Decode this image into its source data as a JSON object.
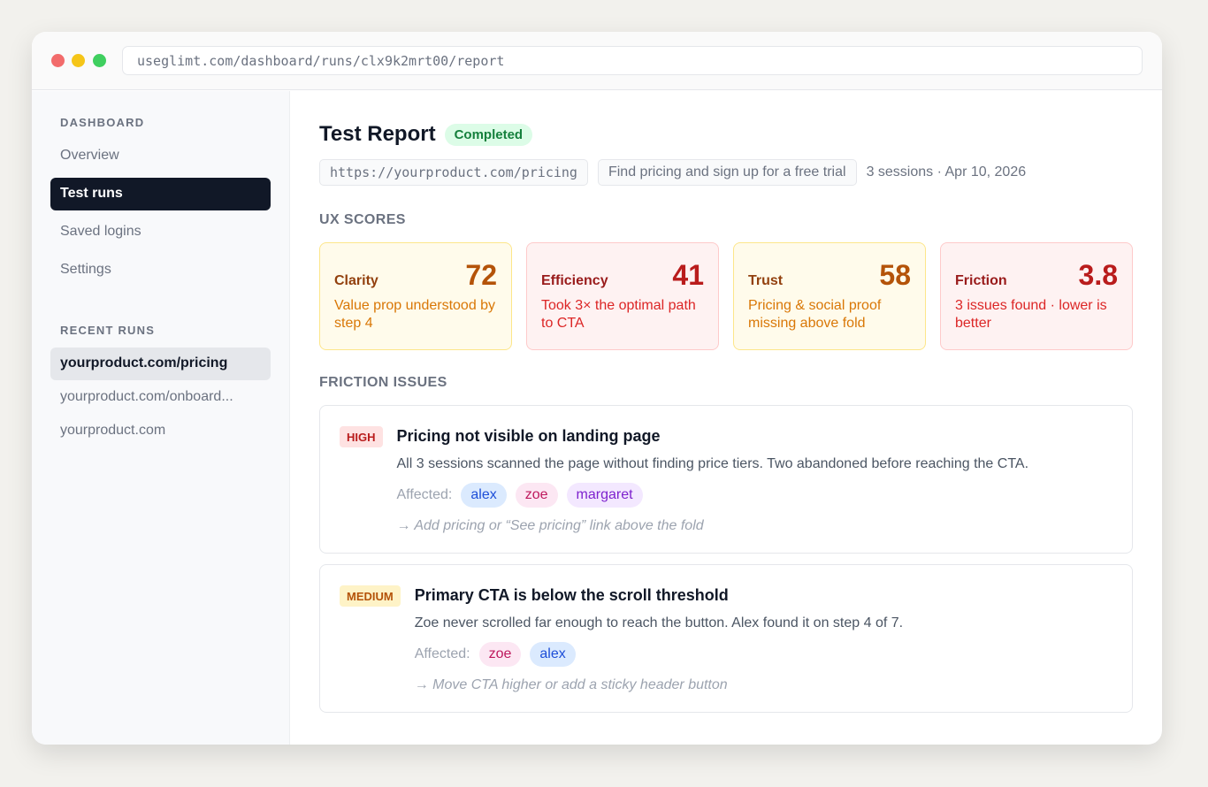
{
  "browser": {
    "url": "useglimt.com/dashboard/runs/clx9k2mrt00/report"
  },
  "sidebar": {
    "section_title": "DASHBOARD",
    "nav": [
      "Overview",
      "Test runs",
      "Saved logins",
      "Settings"
    ],
    "recent_title": "RECENT RUNS",
    "recent": [
      "yourproduct.com/pricing",
      "yourproduct.com/onboard...",
      "yourproduct.com"
    ]
  },
  "report": {
    "title": "Test Report",
    "status": "Completed",
    "url": "https://yourproduct.com/pricing",
    "task": "Find pricing and sign up for a free trial",
    "meta": "3 sessions · Apr 10, 2026",
    "scores_title": "UX SCORES",
    "scores": [
      {
        "label": "Clarity",
        "value": 72,
        "note": "Value prop understood by step 4"
      },
      {
        "label": "Efficiency",
        "value": 41,
        "note": "Took 3× the optimal path to CTA"
      },
      {
        "label": "Trust",
        "value": 58,
        "note": "Pricing & social proof missing above fold"
      },
      {
        "label": "Friction",
        "value": 3.8,
        "note": "3 issues found · lower is better"
      }
    ],
    "issues_title": "FRICTION ISSUES",
    "issues": [
      {
        "severity": "HIGH",
        "title": "Pricing not visible on landing page",
        "description": "All 3 sessions scanned the page without finding price tiers. Two abandoned before reaching the CTA.",
        "affected_label": "Affected:",
        "users": [
          "alex",
          "zoe",
          "margaret"
        ],
        "fix": "→ Add pricing or “See pricing” link above the fold"
      },
      {
        "severity": "MEDIUM",
        "title": "Primary CTA is below the scroll threshold",
        "description": "Zoe never scrolled far enough to reach the button. Alex found it on step 4 of 7.",
        "affected_label": "Affected:",
        "users": [
          "zoe",
          "alex"
        ],
        "fix": "→ Move CTA higher or add a sticky header button"
      }
    ]
  }
}
